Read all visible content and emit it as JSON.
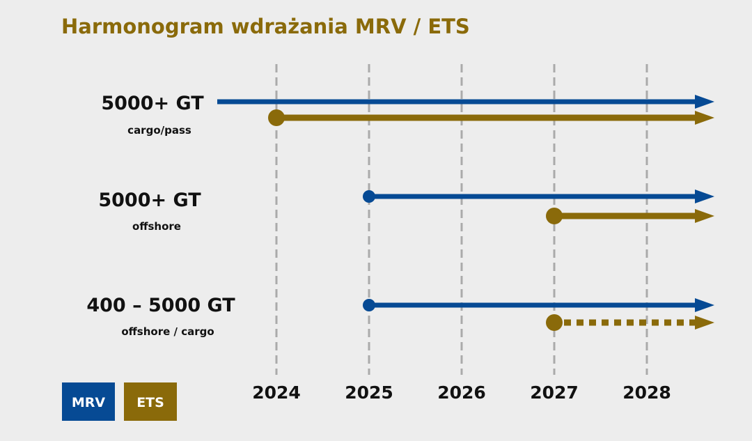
{
  "title": "Harmonogram wdrażania MRV / ETS",
  "colors": {
    "mrv": "#064a94",
    "ets": "#8a6a0a",
    "grid": "#aaaaaa",
    "title": "#8a6a0a",
    "background": "#ededed"
  },
  "chart_data": {
    "type": "timeline",
    "title": "Harmonogram wdrażania MRV / ETS",
    "years": [
      "2024",
      "2025",
      "2026",
      "2027",
      "2028"
    ],
    "grid": "dashed vertical at each year",
    "rows": [
      {
        "label": "5000+ GT",
        "sublabel": "cargo/pass",
        "bars": [
          {
            "series": "MRV",
            "start": "before 2024",
            "marker": false,
            "style": "solid",
            "open_ended": true
          },
          {
            "series": "ETS",
            "start": 2024,
            "marker": true,
            "style": "solid",
            "open_ended": true
          }
        ]
      },
      {
        "label": "5000+ GT",
        "sublabel": "offshore",
        "bars": [
          {
            "series": "MRV",
            "start": 2025,
            "marker": true,
            "style": "solid",
            "open_ended": true
          },
          {
            "series": "ETS",
            "start": 2027,
            "marker": true,
            "style": "solid",
            "open_ended": true
          }
        ]
      },
      {
        "label": "400 – 5000 GT",
        "sublabel": "offshore / cargo",
        "bars": [
          {
            "series": "MRV",
            "start": 2025,
            "marker": true,
            "style": "solid",
            "open_ended": true
          },
          {
            "series": "ETS",
            "start": 2027,
            "marker": true,
            "style": "dotted",
            "open_ended": true
          }
        ]
      }
    ],
    "legend": [
      {
        "name": "MRV",
        "color": "#064a94"
      },
      {
        "name": "ETS",
        "color": "#8a6a0a"
      }
    ],
    "legend_placement": "bottom-left"
  }
}
